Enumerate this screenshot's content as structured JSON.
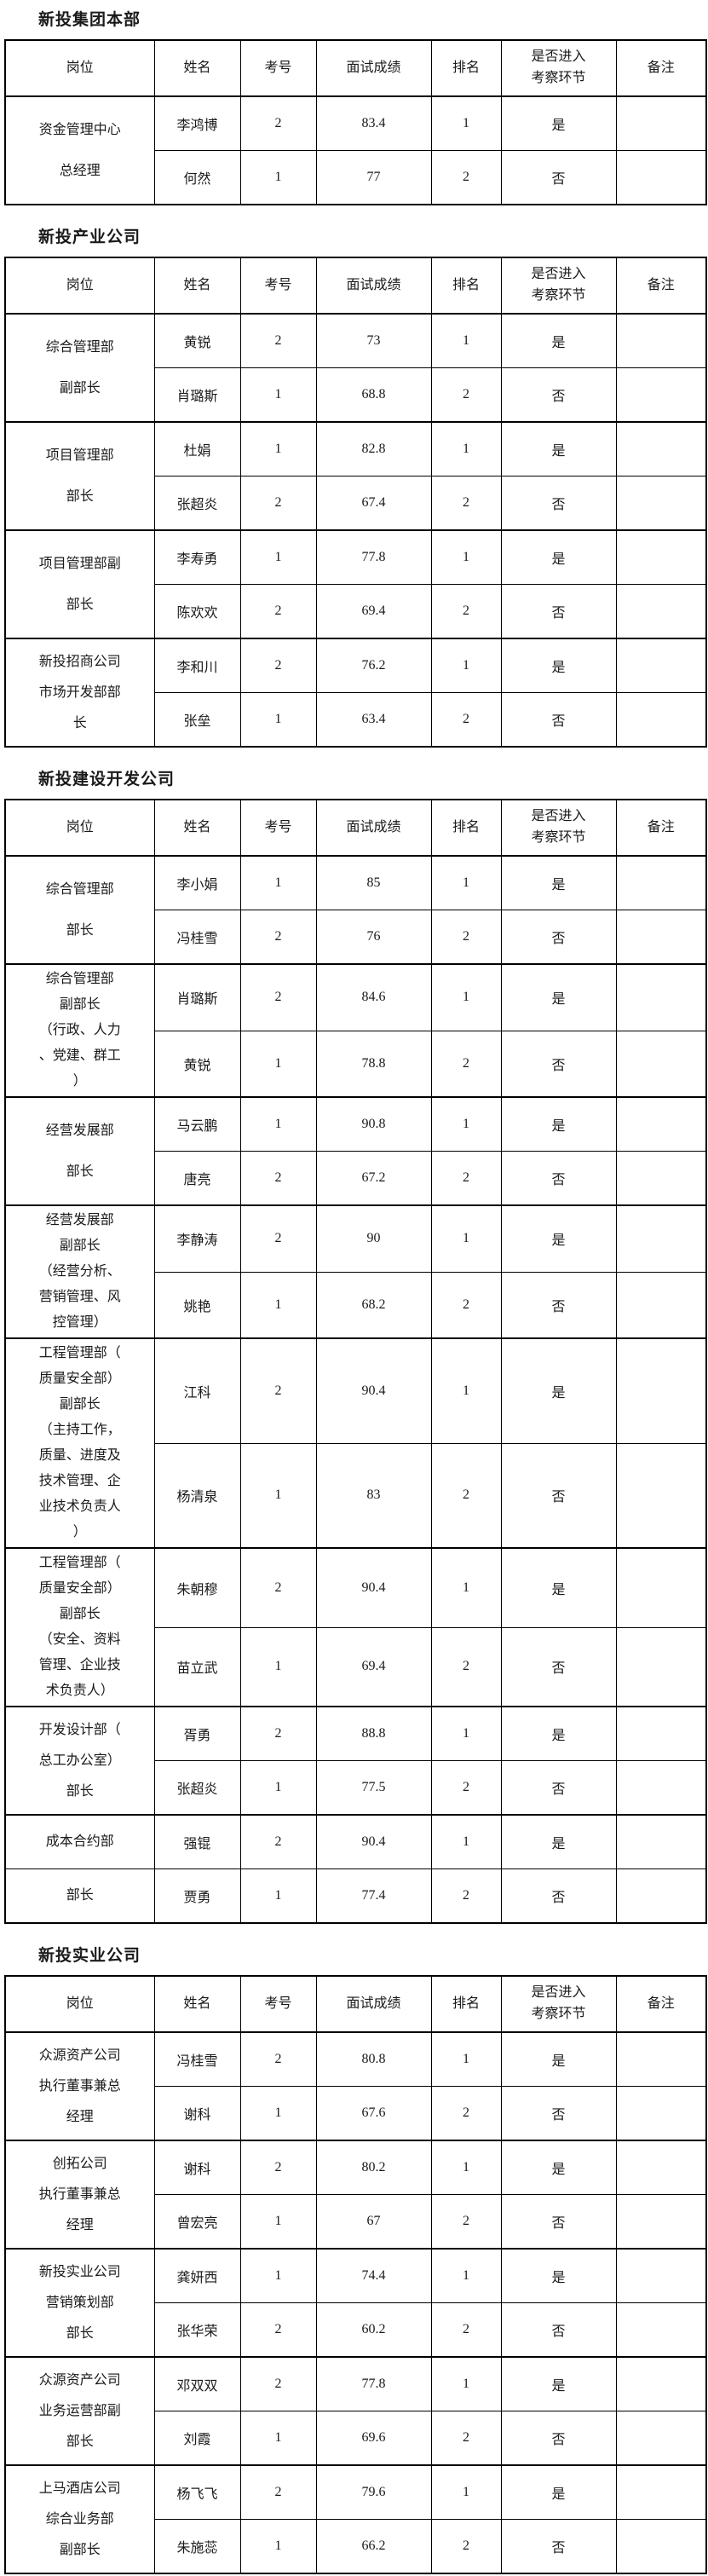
{
  "page": {
    "background": "#ffffff",
    "text_color": "#1a1a1a",
    "border_color": "#000000"
  },
  "columns": [
    {
      "key": "position",
      "label": "岗位"
    },
    {
      "key": "name",
      "label": "姓名"
    },
    {
      "key": "exam-no",
      "label": "考号"
    },
    {
      "key": "score",
      "label": "面试成绩"
    },
    {
      "key": "rank",
      "label": "排名"
    },
    {
      "key": "enter",
      "label": "是否进入\n考察环节"
    },
    {
      "key": "remark",
      "label": "备注"
    }
  ],
  "sections": [
    {
      "title": "新投集团本部",
      "groups": [
        {
          "position": "资金管理中心\n总经理",
          "candidates": [
            {
              "name": "李鸿博",
              "exam_no": "2",
              "score": "83.4",
              "rank": "1",
              "enter": "是",
              "remark": ""
            },
            {
              "name": "何然",
              "exam_no": "1",
              "score": "77",
              "rank": "2",
              "enter": "否",
              "remark": ""
            }
          ]
        }
      ]
    },
    {
      "title": "新投产业公司",
      "groups": [
        {
          "position": "综合管理部\n副部长",
          "candidates": [
            {
              "name": "黄锐",
              "exam_no": "2",
              "score": "73",
              "rank": "1",
              "enter": "是",
              "remark": ""
            },
            {
              "name": "肖璐斯",
              "exam_no": "1",
              "score": "68.8",
              "rank": "2",
              "enter": "否",
              "remark": ""
            }
          ]
        },
        {
          "position": "项目管理部\n部长",
          "candidates": [
            {
              "name": "杜娟",
              "exam_no": "1",
              "score": "82.8",
              "rank": "1",
              "enter": "是",
              "remark": ""
            },
            {
              "name": "张超炎",
              "exam_no": "2",
              "score": "67.4",
              "rank": "2",
              "enter": "否",
              "remark": ""
            }
          ]
        },
        {
          "position": "项目管理部副\n部长",
          "candidates": [
            {
              "name": "李寿勇",
              "exam_no": "1",
              "score": "77.8",
              "rank": "1",
              "enter": "是",
              "remark": ""
            },
            {
              "name": "陈欢欢",
              "exam_no": "2",
              "score": "69.4",
              "rank": "2",
              "enter": "否",
              "remark": ""
            }
          ]
        },
        {
          "position": "新投招商公司\n市场开发部部\n长",
          "candidates": [
            {
              "name": "李和川",
              "exam_no": "2",
              "score": "76.2",
              "rank": "1",
              "enter": "是",
              "remark": ""
            },
            {
              "name": "张垒",
              "exam_no": "1",
              "score": "63.4",
              "rank": "2",
              "enter": "否",
              "remark": ""
            }
          ]
        }
      ]
    },
    {
      "title": "新投建设开发公司",
      "groups": [
        {
          "position": "综合管理部\n部长",
          "candidates": [
            {
              "name": "李小娟",
              "exam_no": "1",
              "score": "85",
              "rank": "1",
              "enter": "是",
              "remark": ""
            },
            {
              "name": "冯桂雪",
              "exam_no": "2",
              "score": "76",
              "rank": "2",
              "enter": "否",
              "remark": ""
            }
          ]
        },
        {
          "position": "综合管理部\n副部长\n（行政、人力\n、党建、群工\n）",
          "candidates": [
            {
              "name": "肖璐斯",
              "exam_no": "2",
              "score": "84.6",
              "rank": "1",
              "enter": "是",
              "remark": ""
            },
            {
              "name": "黄锐",
              "exam_no": "1",
              "score": "78.8",
              "rank": "2",
              "enter": "否",
              "remark": ""
            }
          ]
        },
        {
          "position": "经营发展部\n部长",
          "candidates": [
            {
              "name": "马云鹏",
              "exam_no": "1",
              "score": "90.8",
              "rank": "1",
              "enter": "是",
              "remark": ""
            },
            {
              "name": "唐亮",
              "exam_no": "2",
              "score": "67.2",
              "rank": "2",
              "enter": "否",
              "remark": ""
            }
          ]
        },
        {
          "position": "经营发展部\n副部长\n（经营分析、\n营销管理、风\n控管理）",
          "candidates": [
            {
              "name": "李静涛",
              "exam_no": "2",
              "score": "90",
              "rank": "1",
              "enter": "是",
              "remark": ""
            },
            {
              "name": "姚艳",
              "exam_no": "1",
              "score": "68.2",
              "rank": "2",
              "enter": "否",
              "remark": ""
            }
          ]
        },
        {
          "position": "工程管理部（\n质量安全部）\n副部长\n（主持工作，\n质量、进度及\n技术管理、企\n业技术负责人\n）",
          "candidates": [
            {
              "name": "江科",
              "exam_no": "2",
              "score": "90.4",
              "rank": "1",
              "enter": "是",
              "remark": ""
            },
            {
              "name": "杨清泉",
              "exam_no": "1",
              "score": "83",
              "rank": "2",
              "enter": "否",
              "remark": ""
            }
          ]
        },
        {
          "position": "工程管理部（\n质量安全部）\n副部长\n（安全、资料\n管理、企业技\n术负责人）",
          "candidates": [
            {
              "name": "朱朝穆",
              "exam_no": "2",
              "score": "90.4",
              "rank": "1",
              "enter": "是",
              "remark": ""
            },
            {
              "name": "苗立武",
              "exam_no": "1",
              "score": "69.4",
              "rank": "2",
              "enter": "否",
              "remark": ""
            }
          ]
        },
        {
          "position": "开发设计部（\n总工办公室）\n部长",
          "candidates": [
            {
              "name": "胥勇",
              "exam_no": "2",
              "score": "88.8",
              "rank": "1",
              "enter": "是",
              "remark": ""
            },
            {
              "name": "张超炎",
              "exam_no": "1",
              "score": "77.5",
              "rank": "2",
              "enter": "否",
              "remark": ""
            }
          ]
        },
        {
          "position": "成本合约部",
          "position2": "部长",
          "candidates": [
            {
              "name": "强锟",
              "exam_no": "2",
              "score": "90.4",
              "rank": "1",
              "enter": "是",
              "remark": ""
            },
            {
              "name": "贾勇",
              "exam_no": "1",
              "score": "77.4",
              "rank": "2",
              "enter": "否",
              "remark": ""
            }
          ]
        }
      ]
    },
    {
      "title": "新投实业公司",
      "groups": [
        {
          "position": "众源资产公司\n执行董事兼总\n经理",
          "candidates": [
            {
              "name": "冯桂雪",
              "exam_no": "2",
              "score": "80.8",
              "rank": "1",
              "enter": "是",
              "remark": ""
            },
            {
              "name": "谢科",
              "exam_no": "1",
              "score": "67.6",
              "rank": "2",
              "enter": "否",
              "remark": ""
            }
          ]
        },
        {
          "position": "创拓公司\n执行董事兼总\n经理",
          "candidates": [
            {
              "name": "谢科",
              "exam_no": "2",
              "score": "80.2",
              "rank": "1",
              "enter": "是",
              "remark": ""
            },
            {
              "name": "曾宏亮",
              "exam_no": "1",
              "score": "67",
              "rank": "2",
              "enter": "否",
              "remark": ""
            }
          ]
        },
        {
          "position": "新投实业公司\n营销策划部\n部长",
          "candidates": [
            {
              "name": "龚妍西",
              "exam_no": "1",
              "score": "74.4",
              "rank": "1",
              "enter": "是",
              "remark": ""
            },
            {
              "name": "张华荣",
              "exam_no": "2",
              "score": "60.2",
              "rank": "2",
              "enter": "否",
              "remark": ""
            }
          ]
        },
        {
          "position": "众源资产公司\n业务运营部副\n部长",
          "candidates": [
            {
              "name": "邓双双",
              "exam_no": "2",
              "score": "77.8",
              "rank": "1",
              "enter": "是",
              "remark": ""
            },
            {
              "name": "刘霞",
              "exam_no": "1",
              "score": "69.6",
              "rank": "2",
              "enter": "否",
              "remark": ""
            }
          ]
        },
        {
          "position": "上马酒店公司\n综合业务部\n副部长",
          "candidates": [
            {
              "name": "杨飞飞",
              "exam_no": "2",
              "score": "79.6",
              "rank": "1",
              "enter": "是",
              "remark": ""
            },
            {
              "name": "朱施蕊",
              "exam_no": "1",
              "score": "66.2",
              "rank": "2",
              "enter": "否",
              "remark": ""
            }
          ]
        }
      ]
    }
  ]
}
